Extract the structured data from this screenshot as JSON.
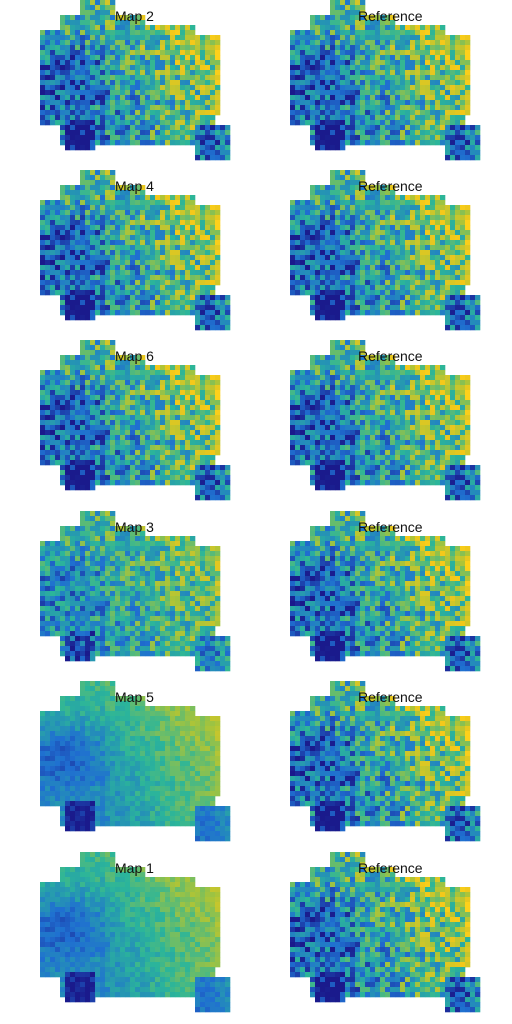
{
  "panels": [
    {
      "title": "Map 2",
      "variant": "sharp",
      "column": "left"
    },
    {
      "title": "Reference",
      "variant": "sharp",
      "column": "right"
    },
    {
      "title": "Map 4",
      "variant": "sharp",
      "column": "left"
    },
    {
      "title": "Reference",
      "variant": "sharp",
      "column": "right"
    },
    {
      "title": "Map 6",
      "variant": "sharp",
      "column": "left"
    },
    {
      "title": "Reference",
      "variant": "sharp",
      "column": "right"
    },
    {
      "title": "Map 3",
      "variant": "muted",
      "column": "left"
    },
    {
      "title": "Reference",
      "variant": "sharp",
      "column": "right"
    },
    {
      "title": "Map 5",
      "variant": "smooth",
      "column": "left"
    },
    {
      "title": "Reference",
      "variant": "sharp",
      "column": "right"
    },
    {
      "title": "Map 1",
      "variant": "smooth",
      "column": "left"
    },
    {
      "title": "Reference",
      "variant": "sharp",
      "column": "right"
    }
  ],
  "colors": {
    "low": "#1a1a8c",
    "mid_low": "#1f6fd1",
    "mid": "#2bb59a",
    "mid_high": "#a8c43a",
    "high": "#f2c81a",
    "peak": "#ffd21a",
    "background": "#ffffff"
  }
}
